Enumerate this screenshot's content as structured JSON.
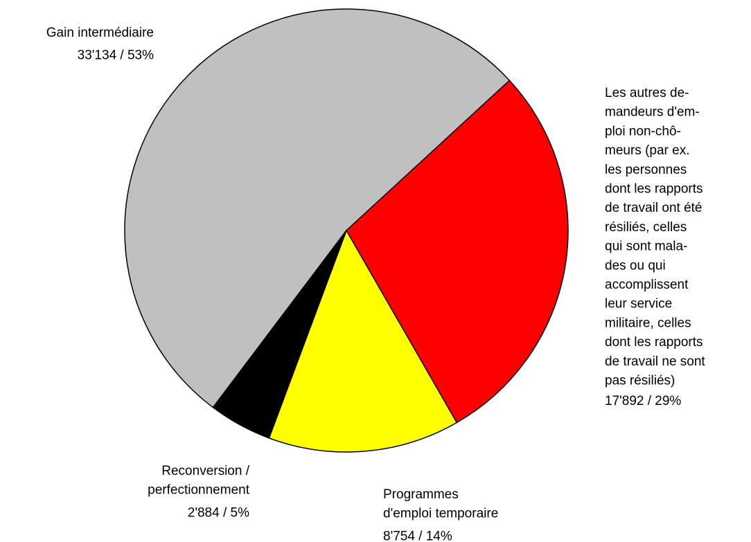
{
  "chart_data": {
    "type": "pie",
    "categories": [
      "Gain intermédiaire",
      "Les autres de-\nmandeurs d'em-\nploi non-chô-\nmeurs (par ex.\nles personnes\ndont les rapports\nde travail ont été\nrésiliés, celles\nqui sont mala-\ndes ou qui\naccomplissent\nleur service\nmilitaire, celles\ndont les rapports\nde travail ne sont\npas résiliés)",
      "Programmes\nd'emploi temporaire",
      "Reconversion /\nperfectionnement"
    ],
    "values": [
      33134,
      17892,
      8754,
      2884
    ],
    "value_labels": [
      "33'134 / 53%",
      "17'892 / 29%",
      "8'754 / 14%",
      "2'884 / 5%"
    ],
    "colors": [
      "#c0c0c0",
      "#ff0000",
      "#ffff00",
      "#000000"
    ]
  }
}
